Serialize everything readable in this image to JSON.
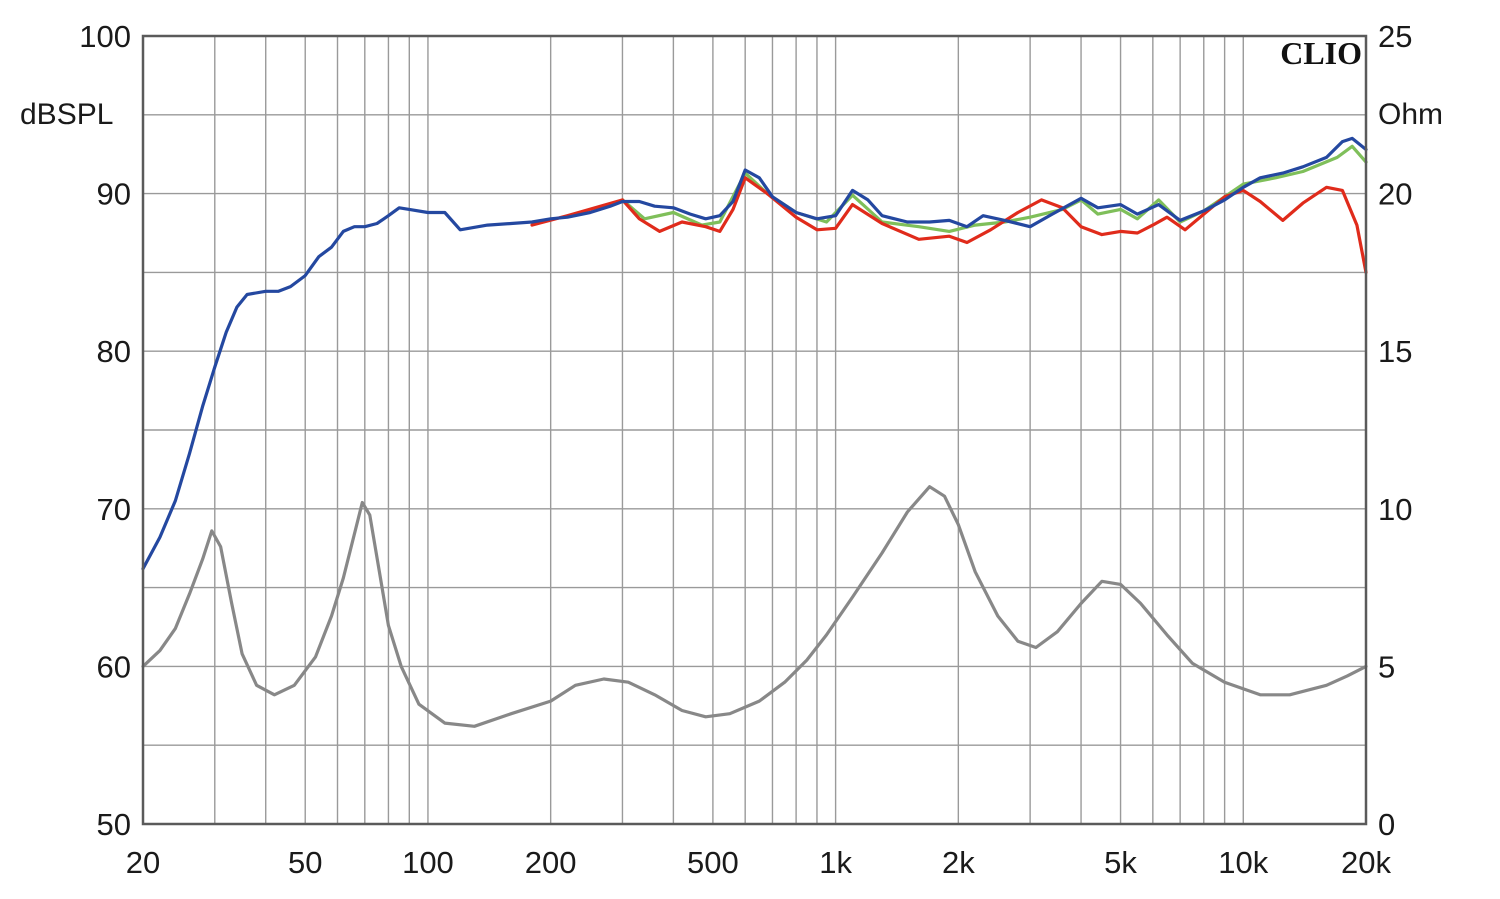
{
  "chart_data": {
    "type": "line",
    "xscale": "log",
    "xlim": [
      20,
      20000
    ],
    "ylim_left": [
      50,
      100
    ],
    "ylim_right": [
      0,
      25
    ],
    "left_unit": "dBSPL",
    "right_unit": "Ohm",
    "brand": "CLIO",
    "x_ticks": [
      {
        "value": 20,
        "label": "20"
      },
      {
        "value": 50,
        "label": "50"
      },
      {
        "value": 100,
        "label": "100"
      },
      {
        "value": 200,
        "label": "200"
      },
      {
        "value": 500,
        "label": "500"
      },
      {
        "value": 1000,
        "label": "1k"
      },
      {
        "value": 2000,
        "label": "2k"
      },
      {
        "value": 5000,
        "label": "5k"
      },
      {
        "value": 10000,
        "label": "10k"
      },
      {
        "value": 20000,
        "label": "20k"
      }
    ],
    "left_ticks": [
      {
        "value": 100,
        "label": "100"
      },
      {
        "value": 90,
        "label": "90"
      },
      {
        "value": 80,
        "label": "80"
      },
      {
        "value": 70,
        "label": "70"
      },
      {
        "value": 60,
        "label": "60"
      },
      {
        "value": 50,
        "label": "50"
      }
    ],
    "right_ticks": [
      {
        "value": 25,
        "label": "25"
      },
      {
        "value": 20,
        "label": "20"
      },
      {
        "value": 15,
        "label": "15"
      },
      {
        "value": 10,
        "label": "10"
      },
      {
        "value": 5,
        "label": "5"
      },
      {
        "value": 0,
        "label": "0"
      }
    ],
    "grid": true,
    "series": [
      {
        "color": "#7fbf5a",
        "axis": "left",
        "points": [
          [
            300,
            89.6
          ],
          [
            340,
            88.4
          ],
          [
            400,
            88.8
          ],
          [
            470,
            88.0
          ],
          [
            520,
            88.2
          ],
          [
            600,
            91.3
          ],
          [
            680,
            90.0
          ],
          [
            800,
            88.8
          ],
          [
            950,
            88.2
          ],
          [
            1100,
            89.9
          ],
          [
            1300,
            88.2
          ],
          [
            1600,
            87.9
          ],
          [
            1900,
            87.6
          ],
          [
            2200,
            88.0
          ],
          [
            2600,
            88.2
          ],
          [
            3000,
            88.5
          ],
          [
            3600,
            89.0
          ],
          [
            4000,
            89.6
          ],
          [
            4400,
            88.7
          ],
          [
            5000,
            89.0
          ],
          [
            5500,
            88.4
          ],
          [
            6200,
            89.6
          ],
          [
            7000,
            88.2
          ],
          [
            8000,
            88.9
          ],
          [
            9000,
            89.8
          ],
          [
            10000,
            90.6
          ],
          [
            12000,
            91.0
          ],
          [
            14000,
            91.4
          ],
          [
            17000,
            92.3
          ],
          [
            18500,
            93.0
          ],
          [
            20000,
            92.0
          ]
        ]
      },
      {
        "color": "#e02b1b",
        "axis": "left",
        "points": [
          [
            180,
            88.0
          ],
          [
            220,
            88.6
          ],
          [
            300,
            89.6
          ],
          [
            330,
            88.4
          ],
          [
            370,
            87.6
          ],
          [
            420,
            88.2
          ],
          [
            480,
            87.9
          ],
          [
            520,
            87.6
          ],
          [
            560,
            89.0
          ],
          [
            600,
            91.0
          ],
          [
            680,
            90.0
          ],
          [
            800,
            88.5
          ],
          [
            900,
            87.7
          ],
          [
            1000,
            87.8
          ],
          [
            1100,
            89.3
          ],
          [
            1300,
            88.1
          ],
          [
            1600,
            87.1
          ],
          [
            1900,
            87.3
          ],
          [
            2100,
            86.9
          ],
          [
            2400,
            87.7
          ],
          [
            2800,
            88.8
          ],
          [
            3200,
            89.6
          ],
          [
            3600,
            89.1
          ],
          [
            4000,
            87.9
          ],
          [
            4500,
            87.4
          ],
          [
            5000,
            87.6
          ],
          [
            5500,
            87.5
          ],
          [
            6000,
            88.0
          ],
          [
            6500,
            88.5
          ],
          [
            7200,
            87.7
          ],
          [
            8000,
            88.7
          ],
          [
            9000,
            89.8
          ],
          [
            10000,
            90.2
          ],
          [
            11000,
            89.5
          ],
          [
            12500,
            88.3
          ],
          [
            14000,
            89.4
          ],
          [
            16000,
            90.4
          ],
          [
            17500,
            90.2
          ],
          [
            19000,
            88.0
          ],
          [
            20000,
            85.0
          ]
        ]
      },
      {
        "color": "#2448a0",
        "axis": "left",
        "points": [
          [
            20,
            66.2
          ],
          [
            22,
            68.2
          ],
          [
            24,
            70.5
          ],
          [
            26,
            73.5
          ],
          [
            28,
            76.5
          ],
          [
            30,
            79.0
          ],
          [
            32,
            81.2
          ],
          [
            34,
            82.8
          ],
          [
            36,
            83.6
          ],
          [
            40,
            83.8
          ],
          [
            43,
            83.8
          ],
          [
            46,
            84.1
          ],
          [
            50,
            84.8
          ],
          [
            54,
            86.0
          ],
          [
            58,
            86.6
          ],
          [
            62,
            87.6
          ],
          [
            66,
            87.9
          ],
          [
            70,
            87.9
          ],
          [
            75,
            88.1
          ],
          [
            80,
            88.6
          ],
          [
            85,
            89.1
          ],
          [
            90,
            89.0
          ],
          [
            100,
            88.8
          ],
          [
            110,
            88.8
          ],
          [
            120,
            87.7
          ],
          [
            140,
            88.0
          ],
          [
            160,
            88.1
          ],
          [
            180,
            88.2
          ],
          [
            200,
            88.4
          ],
          [
            220,
            88.5
          ],
          [
            250,
            88.8
          ],
          [
            280,
            89.2
          ],
          [
            300,
            89.5
          ],
          [
            330,
            89.5
          ],
          [
            360,
            89.2
          ],
          [
            400,
            89.1
          ],
          [
            440,
            88.7
          ],
          [
            480,
            88.4
          ],
          [
            520,
            88.6
          ],
          [
            560,
            89.5
          ],
          [
            600,
            91.5
          ],
          [
            650,
            91.0
          ],
          [
            700,
            89.8
          ],
          [
            800,
            88.8
          ],
          [
            900,
            88.4
          ],
          [
            1000,
            88.6
          ],
          [
            1100,
            90.2
          ],
          [
            1200,
            89.6
          ],
          [
            1300,
            88.6
          ],
          [
            1500,
            88.2
          ],
          [
            1700,
            88.2
          ],
          [
            1900,
            88.3
          ],
          [
            2100,
            87.9
          ],
          [
            2300,
            88.6
          ],
          [
            2600,
            88.3
          ],
          [
            3000,
            87.9
          ],
          [
            3400,
            88.7
          ],
          [
            4000,
            89.7
          ],
          [
            4400,
            89.1
          ],
          [
            5000,
            89.3
          ],
          [
            5500,
            88.7
          ],
          [
            6200,
            89.3
          ],
          [
            7000,
            88.3
          ],
          [
            8000,
            88.9
          ],
          [
            9000,
            89.6
          ],
          [
            10000,
            90.4
          ],
          [
            11000,
            91.0
          ],
          [
            12500,
            91.3
          ],
          [
            14000,
            91.7
          ],
          [
            16000,
            92.3
          ],
          [
            17500,
            93.3
          ],
          [
            18500,
            93.5
          ],
          [
            20000,
            92.8
          ]
        ]
      },
      {
        "color": "#888888",
        "axis": "right",
        "points": [
          [
            20,
            5.0
          ],
          [
            22,
            5.5
          ],
          [
            24,
            6.2
          ],
          [
            26,
            7.3
          ],
          [
            28,
            8.4
          ],
          [
            29.5,
            9.3
          ],
          [
            31,
            8.8
          ],
          [
            33,
            7.0
          ],
          [
            35,
            5.4
          ],
          [
            38,
            4.4
          ],
          [
            42,
            4.1
          ],
          [
            47,
            4.4
          ],
          [
            53,
            5.3
          ],
          [
            58,
            6.6
          ],
          [
            62,
            7.8
          ],
          [
            66,
            9.2
          ],
          [
            69,
            10.2
          ],
          [
            72,
            9.8
          ],
          [
            76,
            8.0
          ],
          [
            80,
            6.3
          ],
          [
            86,
            5.0
          ],
          [
            95,
            3.8
          ],
          [
            110,
            3.2
          ],
          [
            130,
            3.1
          ],
          [
            160,
            3.5
          ],
          [
            200,
            3.9
          ],
          [
            230,
            4.4
          ],
          [
            270,
            4.6
          ],
          [
            310,
            4.5
          ],
          [
            360,
            4.1
          ],
          [
            420,
            3.6
          ],
          [
            480,
            3.4
          ],
          [
            550,
            3.5
          ],
          [
            650,
            3.9
          ],
          [
            750,
            4.5
          ],
          [
            850,
            5.2
          ],
          [
            950,
            6.0
          ],
          [
            1100,
            7.2
          ],
          [
            1300,
            8.6
          ],
          [
            1500,
            9.9
          ],
          [
            1700,
            10.7
          ],
          [
            1850,
            10.4
          ],
          [
            2000,
            9.5
          ],
          [
            2200,
            8.0
          ],
          [
            2500,
            6.6
          ],
          [
            2800,
            5.8
          ],
          [
            3100,
            5.6
          ],
          [
            3500,
            6.1
          ],
          [
            4000,
            7.0
          ],
          [
            4500,
            7.7
          ],
          [
            5000,
            7.6
          ],
          [
            5600,
            7.0
          ],
          [
            6500,
            6.0
          ],
          [
            7500,
            5.1
          ],
          [
            9000,
            4.5
          ],
          [
            11000,
            4.1
          ],
          [
            13000,
            4.1
          ],
          [
            16000,
            4.4
          ],
          [
            18000,
            4.7
          ],
          [
            20000,
            5.0
          ]
        ]
      }
    ]
  }
}
